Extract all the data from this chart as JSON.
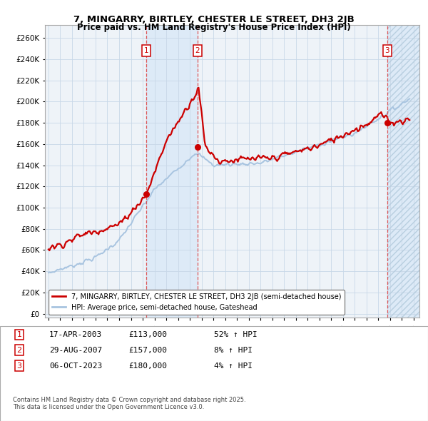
{
  "title": "7, MINGARRY, BIRTLEY, CHESTER LE STREET, DH3 2JB",
  "subtitle": "Price paid vs. HM Land Registry's House Price Index (HPI)",
  "yticks": [
    0,
    20000,
    40000,
    60000,
    80000,
    100000,
    120000,
    140000,
    160000,
    180000,
    200000,
    220000,
    240000,
    260000
  ],
  "ylim": [
    -4000,
    272000
  ],
  "xlim_start": 1994.7,
  "xlim_end": 2026.5,
  "transaction_dates": [
    2003.29,
    2007.66,
    2023.77
  ],
  "transaction_prices": [
    113000,
    157000,
    180000
  ],
  "transaction_labels": [
    "1",
    "2",
    "3"
  ],
  "transaction_info": [
    {
      "label": "1",
      "date": "17-APR-2003",
      "price": "£113,000",
      "pct": "52% ↑ HPI"
    },
    {
      "label": "2",
      "date": "29-AUG-2007",
      "price": "£157,000",
      "pct": "8% ↑ HPI"
    },
    {
      "label": "3",
      "date": "06-OCT-2023",
      "price": "£180,000",
      "pct": "4% ↑ HPI"
    }
  ],
  "hpi_color": "#a8c4e0",
  "price_color": "#cc0000",
  "shade_color": "#ddeaf7",
  "grid_color": "#c8d8e8",
  "bg_color": "#eef3f8",
  "footnote": "Contains HM Land Registry data © Crown copyright and database right 2025.\nThis data is licensed under the Open Government Licence v3.0.",
  "legend_entries": [
    "7, MINGARRY, BIRTLEY, CHESTER LE STREET, DH3 2JB (semi-detached house)",
    "HPI: Average price, semi-detached house, Gateshead"
  ]
}
